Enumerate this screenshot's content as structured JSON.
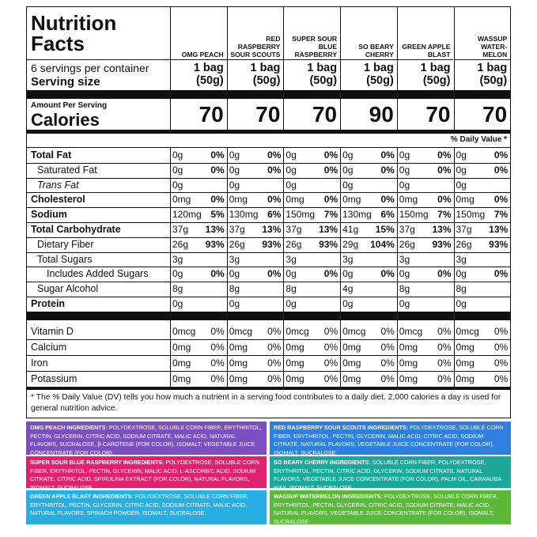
{
  "header": {
    "title": "Nutrition Facts",
    "servings": "6 servings per container",
    "serving_size_label": "Serving size",
    "amount_label": "Amount Per Serving",
    "calories_label": "Calories",
    "daily_value_label": "% Daily Value *"
  },
  "products": [
    {
      "name": "OMG PEACH",
      "serving": "1 bag (50g)",
      "calories": "70"
    },
    {
      "name": "RED RASPBERRY SOUR SCOUTS",
      "serving": "1 bag (50g)",
      "calories": "70"
    },
    {
      "name": "SUPER SOUR BLUE RASPBERRY",
      "serving": "1 bag (50g)",
      "calories": "70"
    },
    {
      "name": "SO BEARY CHERRY",
      "serving": "1 bag (50g)",
      "calories": "90"
    },
    {
      "name": "GREEN APPLE BLAST",
      "serving": "1 bag (50g)",
      "calories": "70"
    },
    {
      "name": "WASSUP WATER-MELON",
      "serving": "1 bag (50g)",
      "calories": "70"
    }
  ],
  "nutrients": [
    {
      "label": "Total Fat",
      "bold": true,
      "cells": [
        [
          "0g",
          "0%"
        ],
        [
          "0g",
          "0%"
        ],
        [
          "0g",
          "0%"
        ],
        [
          "0g",
          "0%"
        ],
        [
          "0g",
          "0%"
        ],
        [
          "0g",
          "0%"
        ]
      ]
    },
    {
      "label": "Saturated Fat",
      "indent": 1,
      "cells": [
        [
          "0g",
          "0%"
        ],
        [
          "0g",
          "0%"
        ],
        [
          "0g",
          "0%"
        ],
        [
          "0g",
          "0%"
        ],
        [
          "0g",
          "0%"
        ],
        [
          "0g",
          "0%"
        ]
      ]
    },
    {
      "label": "Trans Fat",
      "indent": 1,
      "italic": true,
      "cells": [
        [
          "0g"
        ],
        [
          "0g"
        ],
        [
          "0g"
        ],
        [
          "0g"
        ],
        [
          "0g"
        ],
        [
          "0g"
        ]
      ]
    },
    {
      "label": "Cholesterol",
      "bold": true,
      "cells": [
        [
          "0mg",
          "0%"
        ],
        [
          "0mg",
          "0%"
        ],
        [
          "0mg",
          "0%"
        ],
        [
          "0mg",
          "0%"
        ],
        [
          "0mg",
          "0%"
        ],
        [
          "0mg",
          "0%"
        ]
      ]
    },
    {
      "label": "Sodium",
      "bold": true,
      "cells": [
        [
          "120mg",
          "5%"
        ],
        [
          "130mg",
          "6%"
        ],
        [
          "150mg",
          "7%"
        ],
        [
          "130mg",
          "6%"
        ],
        [
          "150mg",
          "7%"
        ],
        [
          "150mg",
          "7%"
        ]
      ]
    },
    {
      "label": "Total Carbohydrate",
      "bold": true,
      "cells": [
        [
          "37g",
          "13%"
        ],
        [
          "37g",
          "13%"
        ],
        [
          "37g",
          "13%"
        ],
        [
          "41g",
          "15%"
        ],
        [
          "37g",
          "13%"
        ],
        [
          "37g",
          "13%"
        ]
      ]
    },
    {
      "label": "Dietary Fiber",
      "indent": 1,
      "cells": [
        [
          "26g",
          "93%"
        ],
        [
          "26g",
          "93%"
        ],
        [
          "26g",
          "93%"
        ],
        [
          "29g",
          "104%"
        ],
        [
          "26g",
          "93%"
        ],
        [
          "26g",
          "93%"
        ]
      ]
    },
    {
      "label": "Total Sugars",
      "indent": 1,
      "cells": [
        [
          "3g"
        ],
        [
          "3g"
        ],
        [
          "3g"
        ],
        [
          "3g"
        ],
        [
          "3g"
        ],
        [
          "3g"
        ]
      ]
    },
    {
      "label": "Includes Added Sugars",
      "indent": 2,
      "cells": [
        [
          "0g",
          "0%"
        ],
        [
          "0g",
          "0%"
        ],
        [
          "0g",
          "0%"
        ],
        [
          "0g",
          "0%"
        ],
        [
          "0g",
          "0%"
        ],
        [
          "0g",
          "0%"
        ]
      ]
    },
    {
      "label": "Sugar Alcohol",
      "indent": 1,
      "cells": [
        [
          "8g"
        ],
        [
          "8g"
        ],
        [
          "8g"
        ],
        [
          "4g"
        ],
        [
          "8g"
        ],
        [
          "8g"
        ]
      ]
    },
    {
      "label": "Protein",
      "bold": true,
      "cells": [
        [
          "0g"
        ],
        [
          "0g"
        ],
        [
          "0g"
        ],
        [
          "0g"
        ],
        [
          "0g"
        ],
        [
          "0g"
        ]
      ]
    }
  ],
  "vitamins": [
    {
      "label": "Vitamin D",
      "cells": [
        [
          "0mcg",
          "0%"
        ],
        [
          "0mcg",
          "0%"
        ],
        [
          "0mcg",
          "0%"
        ],
        [
          "0mcg",
          "0%"
        ],
        [
          "0mcg",
          "0%"
        ],
        [
          "0mcg",
          "0%"
        ]
      ]
    },
    {
      "label": "Calcium",
      "cells": [
        [
          "0mg",
          "0%"
        ],
        [
          "0mg",
          "0%"
        ],
        [
          "0mg",
          "0%"
        ],
        [
          "0mg",
          "0%"
        ],
        [
          "0mg",
          "0%"
        ],
        [
          "0mg",
          "0%"
        ]
      ]
    },
    {
      "label": "Iron",
      "cells": [
        [
          "0mg",
          "0%"
        ],
        [
          "0mg",
          "0%"
        ],
        [
          "0mg",
          "0%"
        ],
        [
          "0mg",
          "0%"
        ],
        [
          "0mg",
          "0%"
        ],
        [
          "0mg",
          "0%"
        ]
      ]
    },
    {
      "label": "Potassium",
      "cells": [
        [
          "0mg",
          "0%"
        ],
        [
          "0mg",
          "0%"
        ],
        [
          "0mg",
          "0%"
        ],
        [
          "0mg",
          "0%"
        ],
        [
          "0mg",
          "0%"
        ],
        [
          "0mg",
          "0%"
        ]
      ]
    }
  ],
  "footnote": "* The % Daily Value (DV) tells you how much a nutrient in a serving food contributes to a daily diet. 2,000 calories a day is used for general nutrition advice.",
  "ingredients": [
    {
      "name": "OMG PEACH INGREDIENTS:",
      "text": "POLYDEXTROSE, SOLUBLE CORN FIBER, ERYTHRITOL, PECTIN, GLYCERIN, CITRIC ACID, SODIUM CITRATE, MALIC ACID, NATURAL FLAVORS, SUCRALOSE, β-CAROTENE (FOR COLOR), ISOMALT, VEGETABLE JUICE CONCENTRATE (FOR COLOR).",
      "color": "#7a4fc1"
    },
    {
      "name": "RED RASPBERRY SOUR SCOUTS INGREDIENTS:",
      "text": "POLYDEXTROSE, SOLUBLE CORN FIBER, ERYTHRITOL, PECTIN, GLYCERIN, MALIC ACID, CITRIC ACID, SODIUM CITRATE, NATURAL FLAVORS, VEGETABLE JUICE CONCENTRATE (FOR COLOR), ISOMALT, SUCRALOSE.",
      "color": "#2d7fe0"
    },
    {
      "name": "SUPER SOUR BLUE RASPBERRY INGREDIENTS:",
      "text": "POLYDEXTROSE, SOLUBLE CORN FIBER, ERYTHRITOL, PECTIN, GLYCERIN, MALIC ACID, L-ASCORBIC ACID, SODIUM CITRATE, CITRIC ACID, SPIRULINA EXTRACT (FOR COLOR), NATURAL FLAVORS, ISOMALT, SUCRALOSE.",
      "color": "#e2216c"
    },
    {
      "name": "SO BEARY CHERRY INGREDIENTS:",
      "text": "SOLUBLE CORN FIBER, POLYDEXTROSE, ERYTHRITOL, PECTIN, CITRIC ACID, GLYCERIN, SODIUM CITRATE, NATURAL FLAVORS, VEGETABLE JUICE CONCENTRATE (FOR COLOR), PALM OIL, CARNAUBA WAX, ISOMALT, SUCRALOSE.",
      "color": "#1ba89a"
    },
    {
      "name": "GREEN APPLE BLAST INGREDIENTS:",
      "text": "POLYDEXTROSE, SOLUBLE CORN FIBER, ERYTHRITOL, PECTIN, GLYCERIN, CITRIC ACID, SODIUM CITRATE, MALIC ACID, NATURAL FLAVORS, SPINACH POWDER, ISOMALT, SUCRALOSE.",
      "color": "#28aee2"
    },
    {
      "name": "WASSUP WATERMELON INGREDIENTS:",
      "text": "POLYDEXTROSE, SOLUBLE CORN FIBER, ERYTHRITOL, PECTIN, GLYCERIN, CITRIC ACID, SODIUM CITRATE, MALIC ACID, NATURAL FLAVORS, VEGETABLE JUICE CONCENTRATE (FOR COLOR), ISOMALT, SUCRALOSE.",
      "color": "#5bb83b"
    }
  ]
}
